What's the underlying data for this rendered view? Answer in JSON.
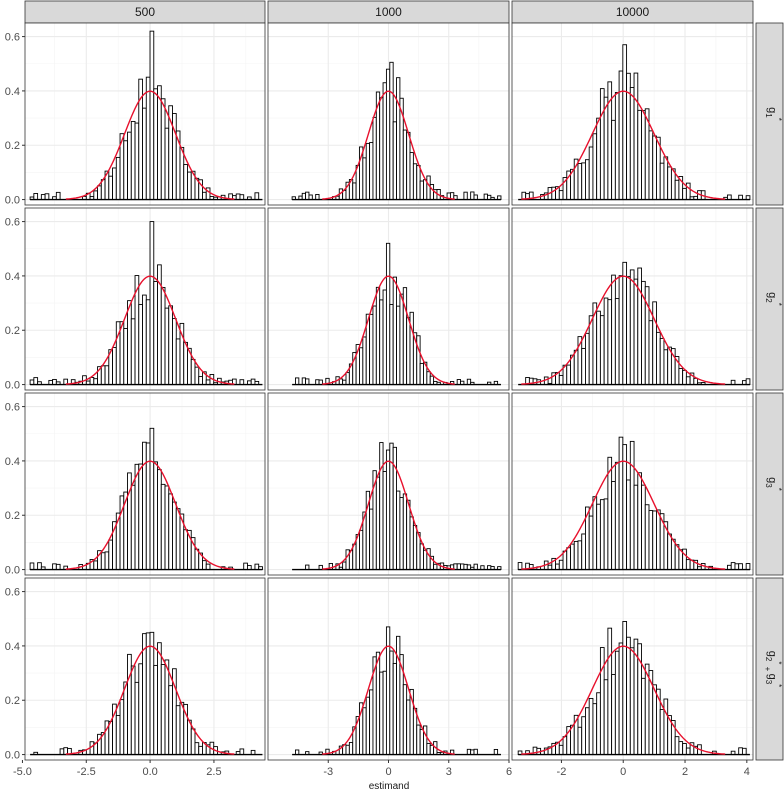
{
  "colors": {
    "strip_fill": "#d9d9d9",
    "strip_border": "#333333",
    "panel_border": "#333333",
    "grid_major": "#ebebeb",
    "grid_minor": "#f4f4f4",
    "bar_fill": "#ffffff",
    "bar_stroke": "#000000",
    "density_line": "#e8112d",
    "text": "#4d4d4d"
  },
  "strips": {
    "columns": [
      "500",
      "1000",
      "10000"
    ],
    "rows": [
      {
        "base": "g",
        "sub": "1",
        "sup": "*"
      },
      {
        "base": "g",
        "sub": "2",
        "sup": "*"
      },
      {
        "base": "g",
        "sub": "3",
        "sup": "*"
      },
      {
        "base": "g",
        "sub": "2",
        "sup": "*",
        "join": " + ",
        "base2": "g",
        "sub2": "3",
        "sup2": "*"
      }
    ]
  },
  "chart_data": {
    "type": "histogram-facet",
    "xlabel": "estimand",
    "ylabel": "",
    "y_ticks": [
      0.0,
      0.2,
      0.4,
      0.6
    ],
    "y_tick_labels": [
      "0.0",
      "0.2",
      "0.4",
      "0.6"
    ],
    "ylim": [
      -0.02,
      0.65
    ],
    "overlay": "standard normal density",
    "grid": true,
    "columns": [
      {
        "label": "500",
        "xlim": [
          -4.9,
          4.5
        ],
        "x_ticks": [
          -5.0,
          -2.5,
          0.0,
          2.5
        ],
        "x_tick_labels": [
          "-5.0",
          "-2.5",
          "0.0",
          "2.5"
        ],
        "bins": [
          -4.7,
          4.4
        ]
      },
      {
        "label": "1000",
        "xlim": [
          -6.0,
          6.0
        ],
        "x_ticks": [
          -3,
          0,
          3,
          6
        ],
        "x_tick_labels": [
          "-3",
          "0",
          "3",
          "6"
        ],
        "bins": [
          -4.8,
          5.6
        ]
      },
      {
        "label": "10000",
        "xlim": [
          -3.6,
          4.2
        ],
        "x_ticks": [
          -2,
          0,
          2,
          4
        ],
        "x_tick_labels": [
          "-2",
          "0",
          "2",
          "4"
        ],
        "bins": [
          -3.4,
          4.1
        ]
      }
    ],
    "panels": [
      {
        "row": 0,
        "col": 0,
        "seed": 11,
        "peak": 0.62
      },
      {
        "row": 0,
        "col": 1,
        "seed": 12,
        "peak": 0.48
      },
      {
        "row": 0,
        "col": 2,
        "seed": 13,
        "peak": 0.57
      },
      {
        "row": 1,
        "col": 0,
        "seed": 21,
        "peak": 0.6
      },
      {
        "row": 1,
        "col": 1,
        "seed": 22,
        "peak": 0.52
      },
      {
        "row": 1,
        "col": 2,
        "seed": 23,
        "peak": 0.45
      },
      {
        "row": 2,
        "col": 0,
        "seed": 31,
        "peak": 0.52
      },
      {
        "row": 2,
        "col": 1,
        "seed": 32,
        "peak": 0.44
      },
      {
        "row": 2,
        "col": 2,
        "seed": 33,
        "peak": 0.46
      },
      {
        "row": 3,
        "col": 0,
        "seed": 41,
        "peak": 0.45
      },
      {
        "row": 3,
        "col": 1,
        "seed": 42,
        "peak": 0.47
      },
      {
        "row": 3,
        "col": 2,
        "seed": 43,
        "peak": 0.49
      }
    ]
  }
}
